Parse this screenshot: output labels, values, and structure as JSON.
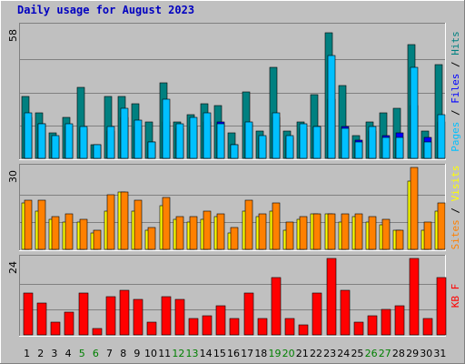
{
  "title": "Daily usage for August 2023",
  "colors": {
    "background": "#c0c0c0",
    "title": "#0000c0",
    "pages": "#00c0ff",
    "files": "#0000ff",
    "hits": "#008080",
    "sites": "#ff8000",
    "visits": "#ffff00",
    "kbytes": "#ff0000",
    "weekend_label": "#008000"
  },
  "chart_data": [
    {
      "type": "bar",
      "name": "hits-files-pages",
      "ymax_label": "58",
      "ylim": [
        0,
        58
      ],
      "side_labels": [
        "Pages",
        "/",
        "Files",
        "/",
        "Hits"
      ],
      "side_colors": [
        "#00c0ff",
        "#000000",
        "#0000ff",
        "#000000",
        "#008080"
      ],
      "categories": [
        "1",
        "2",
        "3",
        "4",
        "5",
        "6",
        "7",
        "8",
        "9",
        "10",
        "11",
        "12",
        "13",
        "14",
        "15",
        "16",
        "17",
        "18",
        "19",
        "20",
        "21",
        "22",
        "23",
        "24",
        "25",
        "26",
        "27",
        "28",
        "29",
        "30",
        "31"
      ],
      "weekend_days": [
        5,
        6,
        12,
        13,
        19,
        20,
        26,
        27
      ],
      "series": [
        {
          "name": "Hits",
          "values": [
            27,
            20,
            11,
            18,
            31,
            6,
            27,
            27,
            24,
            16,
            33,
            16,
            19,
            24,
            23,
            11,
            29,
            12,
            40,
            12,
            16,
            28,
            55,
            32,
            10,
            16,
            20,
            22,
            50,
            12,
            41
          ]
        },
        {
          "name": "Files",
          "values": [
            18,
            15,
            9,
            14,
            13,
            6,
            12,
            18,
            14,
            7,
            16,
            13,
            14,
            16,
            16,
            6,
            15,
            9,
            18,
            9,
            13,
            14,
            26,
            14,
            8,
            12,
            10,
            11,
            23,
            9,
            16
          ]
        },
        {
          "name": "Pages",
          "values": [
            20,
            15,
            10,
            15,
            14,
            6,
            14,
            22,
            17,
            7,
            26,
            15,
            18,
            20,
            15,
            6,
            16,
            10,
            20,
            10,
            15,
            14,
            45,
            13,
            7,
            14,
            9,
            9,
            40,
            7,
            19
          ]
        }
      ]
    },
    {
      "type": "bar",
      "name": "visits-sites",
      "ymax_label": "30",
      "ylim": [
        0,
        30
      ],
      "side_labels": [
        "Sites",
        "/",
        "Visits"
      ],
      "side_colors": [
        "#ff8000",
        "#000000",
        "#ffff00"
      ],
      "series": [
        {
          "name": "Visits",
          "values": [
            17,
            14,
            11,
            10,
            10,
            6,
            14,
            21,
            14,
            7,
            16,
            11,
            10,
            11,
            12,
            6,
            14,
            12,
            14,
            7,
            11,
            13,
            13,
            10,
            12,
            10,
            9,
            7,
            25,
            7,
            14
          ]
        },
        {
          "name": "Sites",
          "values": [
            18,
            18,
            12,
            13,
            11,
            7,
            20,
            21,
            18,
            8,
            19,
            12,
            12,
            14,
            13,
            8,
            18,
            13,
            17,
            10,
            12,
            13,
            13,
            13,
            13,
            12,
            11,
            7,
            30,
            10,
            17
          ]
        }
      ]
    },
    {
      "type": "bar",
      "name": "kbytes",
      "ymax_label": "24",
      "ylim": [
        0,
        24
      ],
      "side_labels": [
        "KB F"
      ],
      "side_colors": [
        "#ff0000"
      ],
      "series": [
        {
          "name": "KB F",
          "values": [
            13,
            10,
            4,
            7,
            13,
            2,
            12,
            14,
            11,
            4,
            12,
            11,
            5,
            6,
            9,
            5,
            13,
            5,
            18,
            5,
            3,
            13,
            24,
            14,
            4,
            6,
            8,
            9,
            24,
            5,
            18
          ]
        }
      ]
    }
  ]
}
